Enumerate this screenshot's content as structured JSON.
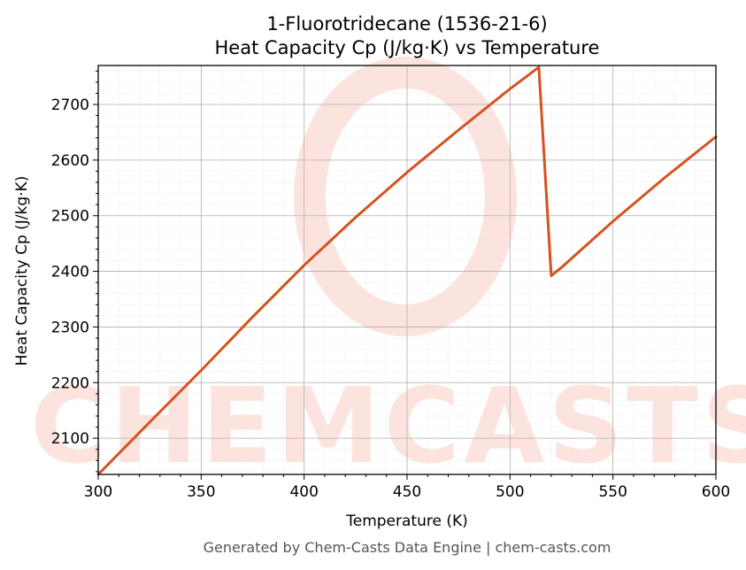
{
  "chart_data": {
    "type": "line",
    "title": "1-Fluorotridecane (1536-21-6)",
    "subtitle": "Heat Capacity Cp (J/kg·K) vs Temperature",
    "xlabel": "Temperature (K)",
    "ylabel": "Heat Capacity Cp (J/kg·K)",
    "xlim": [
      300,
      600
    ],
    "ylim": [
      2035,
      2770
    ],
    "x_ticks": [
      300,
      350,
      400,
      450,
      500,
      550,
      600
    ],
    "y_ticks": [
      2100,
      2200,
      2300,
      2400,
      2500,
      2600,
      2700
    ],
    "grid": true,
    "series": [
      {
        "color": "#d4531f",
        "points": [
          [
            300,
            2035
          ],
          [
            325,
            2129
          ],
          [
            350,
            2222
          ],
          [
            375,
            2318
          ],
          [
            400,
            2411
          ],
          [
            425,
            2497
          ],
          [
            450,
            2578
          ],
          [
            475,
            2654
          ],
          [
            500,
            2728
          ],
          [
            514,
            2767
          ],
          [
            520,
            2392
          ],
          [
            525,
            2407
          ],
          [
            550,
            2490
          ],
          [
            575,
            2568
          ],
          [
            600,
            2642
          ]
        ]
      }
    ]
  },
  "watermark": {
    "text": "CHEMCASTS",
    "color": "#fde3de"
  },
  "footer": "Generated by Chem-Casts Data Engine | chem-casts.com"
}
